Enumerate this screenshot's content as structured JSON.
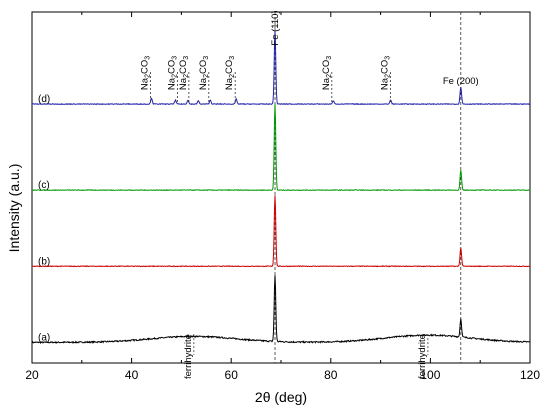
{
  "chart_data": {
    "type": "line",
    "xlabel": "2θ (deg)",
    "ylabel": "Intensity (a.u.)",
    "xlim": [
      20,
      120
    ],
    "xticks": [
      "20",
      "40",
      "60",
      "80",
      "100",
      "120"
    ],
    "yticks_shown": false,
    "grid": false,
    "legend": "none",
    "series": [
      {
        "name": "(a)",
        "color": "#000000",
        "baseline_level": 0.02,
        "offset_level": 0.0,
        "peaks": [
          {
            "x": 68.8,
            "height": 0.2
          },
          {
            "x": 106.1,
            "height": 0.055
          }
        ],
        "broad_humps": [
          {
            "x": 52.5,
            "height": 0.018
          },
          {
            "x": 99.5,
            "height": 0.022
          }
        ]
      },
      {
        "name": "(b)",
        "color": "#cc0000",
        "baseline_level": 0.0,
        "offset_level": 0.25,
        "peaks": [
          {
            "x": 68.8,
            "height": 0.215
          },
          {
            "x": 106.1,
            "height": 0.055
          }
        ]
      },
      {
        "name": "(c)",
        "color": "#009900",
        "baseline_level": 0.0,
        "offset_level": 0.48,
        "peaks": [
          {
            "x": 68.8,
            "height": 0.26
          },
          {
            "x": 106.1,
            "height": 0.06
          }
        ]
      },
      {
        "name": "(d)",
        "color": "#2222aa",
        "baseline_level": 0.0,
        "offset_level": 0.74,
        "peaks": [
          {
            "x": 44.0,
            "height": 0.018
          },
          {
            "x": 48.8,
            "height": 0.012
          },
          {
            "x": 51.3,
            "height": 0.012
          },
          {
            "x": 53.4,
            "height": 0.01
          },
          {
            "x": 55.8,
            "height": 0.012
          },
          {
            "x": 61.0,
            "height": 0.015
          },
          {
            "x": 68.8,
            "height": 0.22
          },
          {
            "x": 80.5,
            "height": 0.01
          },
          {
            "x": 92.0,
            "height": 0.012
          },
          {
            "x": 106.1,
            "height": 0.052
          }
        ]
      }
    ],
    "annotations": [
      {
        "text": "Fe (110)",
        "x": 68.8,
        "type": "vline"
      },
      {
        "text": "Fe (200)",
        "x": 106.1,
        "type": "vline"
      },
      {
        "text_main": "Na",
        "sub": "2",
        "rest": "CO",
        "sub2": "3",
        "x": 43.8
      },
      {
        "text_main": "Na",
        "sub": "2",
        "rest": "CO",
        "sub2": "3",
        "x": 49.2
      },
      {
        "text_main": "Na",
        "sub": "2",
        "rest": "CO",
        "sub2": "3",
        "x": 51.5
      },
      {
        "text_main": "Na",
        "sub": "2",
        "rest": "CO",
        "sub2": "3",
        "x": 55.5
      },
      {
        "text_main": "Na",
        "sub": "2",
        "rest": "CO",
        "sub2": "3",
        "x": 60.8
      },
      {
        "text_main": "Na",
        "sub": "2",
        "rest": "CO",
        "sub2": "3",
        "x": 80.2
      },
      {
        "text_main": "Na",
        "sub": "2",
        "rest": "CO",
        "sub2": "3",
        "x": 92.0
      },
      {
        "text": "ferrihydrite",
        "x": 52.5
      },
      {
        "text": "ferrihydrite",
        "x": 99.5
      }
    ]
  }
}
